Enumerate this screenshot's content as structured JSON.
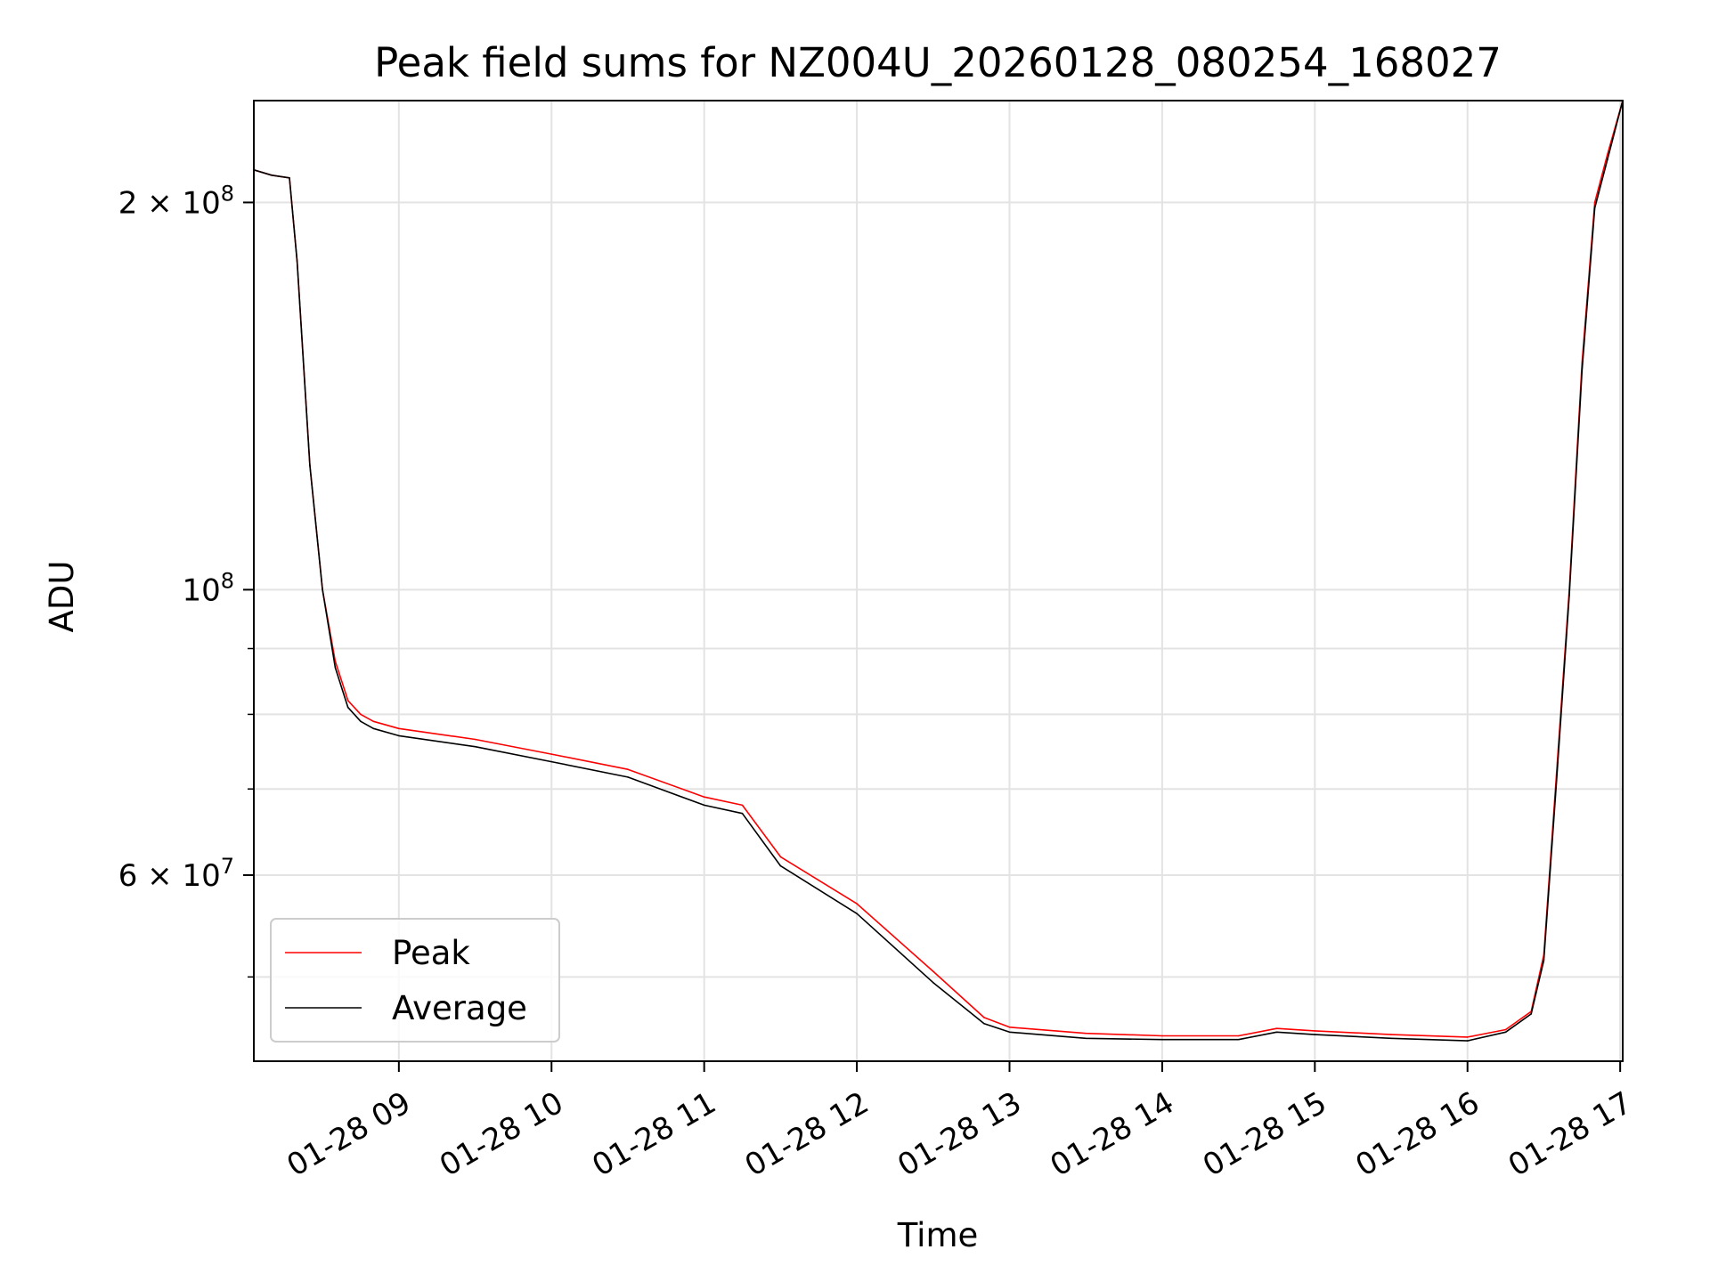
{
  "chart_data": {
    "type": "line",
    "title": "Peak field sums for NZ004U_20260128_080254_168027",
    "xlabel": "Time",
    "ylabel": "ADU",
    "y_scale": "log",
    "grid": true,
    "legend_position": "lower-left",
    "xlim": [
      "2026-01-28 08:03",
      "2026-01-28 17:01"
    ],
    "ylim": [
      43000000,
      240000000
    ],
    "x_ticks": [
      "01-28 09",
      "01-28 10",
      "01-28 11",
      "01-28 12",
      "01-28 13",
      "01-28 14",
      "01-28 15",
      "01-28 16",
      "01-28 17"
    ],
    "y_tick_labels": [
      {
        "value": 200000000,
        "base": "2 × 10",
        "exp": "8"
      },
      {
        "value": 100000000,
        "base": "10",
        "exp": "8"
      },
      {
        "value": 60000000,
        "base": "6 × 10",
        "exp": "7"
      }
    ],
    "series": [
      {
        "name": "Peak",
        "color": "#ff0000",
        "x": [
          "2026-01-28 08:03",
          "2026-01-28 08:10",
          "2026-01-28 08:17",
          "2026-01-28 08:20",
          "2026-01-28 08:25",
          "2026-01-28 08:30",
          "2026-01-28 08:35",
          "2026-01-28 08:40",
          "2026-01-28 08:45",
          "2026-01-28 08:50",
          "2026-01-28 09:00",
          "2026-01-28 09:30",
          "2026-01-28 10:00",
          "2026-01-28 10:30",
          "2026-01-28 11:00",
          "2026-01-28 11:15",
          "2026-01-28 11:30",
          "2026-01-28 12:00",
          "2026-01-28 12:30",
          "2026-01-28 12:50",
          "2026-01-28 13:00",
          "2026-01-28 13:30",
          "2026-01-28 14:00",
          "2026-01-28 14:30",
          "2026-01-28 14:45",
          "2026-01-28 15:00",
          "2026-01-28 15:30",
          "2026-01-28 16:00",
          "2026-01-28 16:15",
          "2026-01-28 16:25",
          "2026-01-28 16:30",
          "2026-01-28 16:35",
          "2026-01-28 16:40",
          "2026-01-28 16:45",
          "2026-01-28 16:50",
          "2026-01-28 16:55",
          "2026-01-28 17:01"
        ],
        "y": [
          212000000,
          210000000,
          209000000,
          180000000,
          125000000,
          100000000,
          88000000,
          82000000,
          80000000,
          79000000,
          78000000,
          76500000,
          74500000,
          72500000,
          69000000,
          68000000,
          62000000,
          57000000,
          50500000,
          46500000,
          45700000,
          45200000,
          45000000,
          45000000,
          45600000,
          45400000,
          45100000,
          44900000,
          45500000,
          47000000,
          52000000,
          72000000,
          100000000,
          150000000,
          200000000,
          218000000,
          240000000
        ]
      },
      {
        "name": "Average",
        "color": "#000000",
        "x": [
          "2026-01-28 08:03",
          "2026-01-28 08:10",
          "2026-01-28 08:17",
          "2026-01-28 08:20",
          "2026-01-28 08:25",
          "2026-01-28 08:30",
          "2026-01-28 08:35",
          "2026-01-28 08:40",
          "2026-01-28 08:45",
          "2026-01-28 08:50",
          "2026-01-28 09:00",
          "2026-01-28 09:30",
          "2026-01-28 10:00",
          "2026-01-28 10:30",
          "2026-01-28 11:00",
          "2026-01-28 11:15",
          "2026-01-28 11:30",
          "2026-01-28 12:00",
          "2026-01-28 12:30",
          "2026-01-28 12:50",
          "2026-01-28 13:00",
          "2026-01-28 13:30",
          "2026-01-28 14:00",
          "2026-01-28 14:30",
          "2026-01-28 14:45",
          "2026-01-28 15:00",
          "2026-01-28 15:30",
          "2026-01-28 16:00",
          "2026-01-28 16:15",
          "2026-01-28 16:25",
          "2026-01-28 16:30",
          "2026-01-28 16:35",
          "2026-01-28 16:40",
          "2026-01-28 16:45",
          "2026-01-28 16:50",
          "2026-01-28 16:55",
          "2026-01-28 17:01"
        ],
        "y": [
          212000000,
          210000000,
          209000000,
          180000000,
          125000000,
          100000000,
          87000000,
          81000000,
          79000000,
          78000000,
          77000000,
          75500000,
          73500000,
          71500000,
          68000000,
          67000000,
          61000000,
          56000000,
          49500000,
          46000000,
          45300000,
          44800000,
          44700000,
          44700000,
          45300000,
          45100000,
          44800000,
          44600000,
          45300000,
          46800000,
          51500000,
          71000000,
          99000000,
          148000000,
          198000000,
          216000000,
          240000000
        ]
      }
    ]
  }
}
